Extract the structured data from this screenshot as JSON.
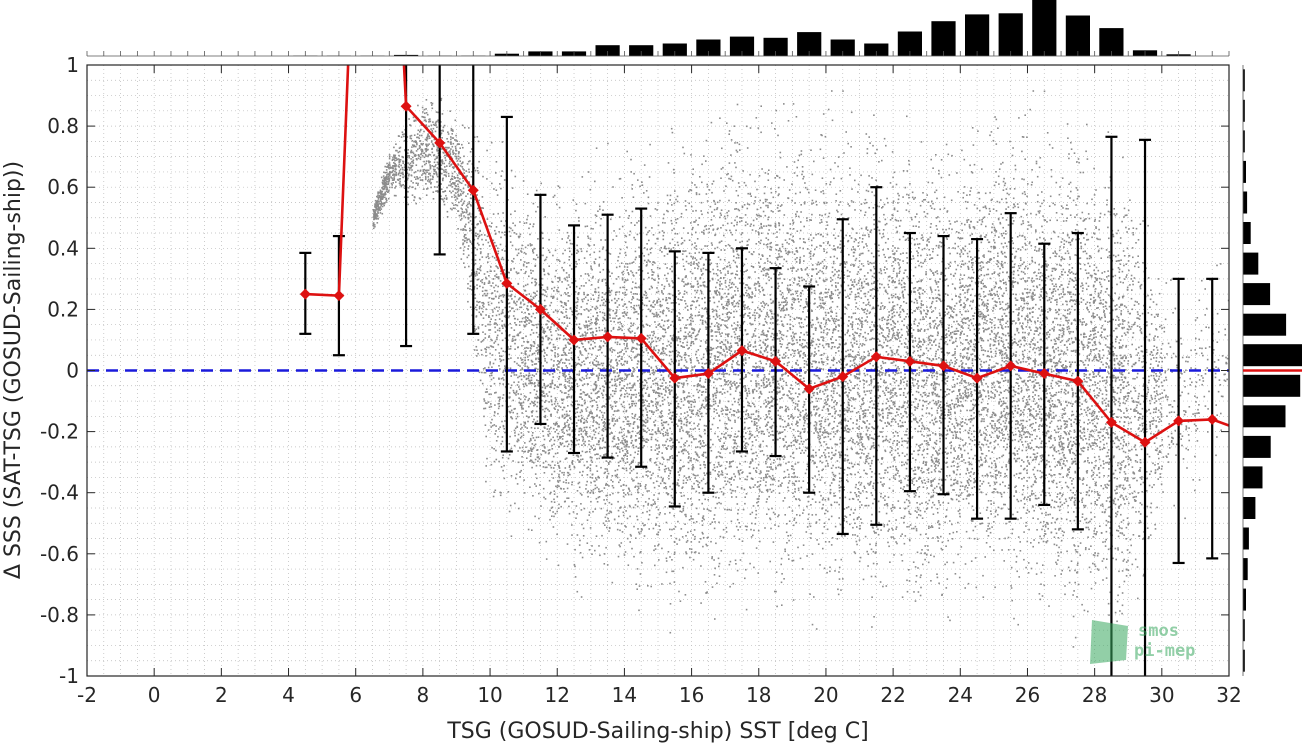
{
  "chart_data": {
    "type": "scatter",
    "xlabel": "TSG (GOSUD-Sailing-ship) SST [deg C]",
    "ylabel": "Δ SSS (SAT-TSG (GOSUD-Sailing-ship))",
    "xlim": [
      -2,
      32
    ],
    "ylim": [
      -1,
      1
    ],
    "xticks": [
      -2,
      0,
      2,
      4,
      6,
      8,
      10,
      12,
      14,
      16,
      18,
      20,
      22,
      24,
      26,
      28,
      30,
      32
    ],
    "yticks": [
      -1,
      -0.8,
      -0.6,
      -0.4,
      -0.2,
      0,
      0.2,
      0.4,
      0.6,
      0.8,
      1
    ],
    "grid": true,
    "zero_line": {
      "y": 0,
      "style": "dashed",
      "color": "#1a1adb"
    },
    "binned_mean": {
      "color": "#dd1111",
      "x": [
        4.5,
        5.5,
        7.5,
        8.5,
        9.5,
        10.5,
        11.5,
        12.5,
        13.5,
        14.5,
        15.5,
        16.5,
        17.5,
        18.5,
        19.5,
        20.5,
        21.5,
        22.5,
        23.5,
        24.5,
        25.5,
        26.5,
        27.5,
        28.5,
        29.5,
        30.5,
        31.5
      ],
      "mean": [
        0.25,
        0.245,
        0.865,
        0.745,
        0.59,
        0.285,
        0.2,
        0.1,
        0.11,
        0.105,
        -0.025,
        -0.01,
        0.065,
        0.03,
        -0.06,
        -0.02,
        0.045,
        0.03,
        0.015,
        -0.025,
        0.015,
        -0.01,
        -0.035,
        -0.17,
        -0.235,
        -0.165,
        -0.16
      ],
      "std_low": [
        0.12,
        0.05,
        0.08,
        0.38,
        0.12,
        -0.265,
        -0.175,
        -0.27,
        -0.285,
        -0.315,
        -0.445,
        -0.4,
        -0.265,
        -0.28,
        -0.4,
        -0.535,
        -0.505,
        -0.395,
        -0.405,
        -0.485,
        -0.485,
        -0.44,
        -0.52,
        -1.0,
        -1.0,
        -0.63,
        -0.615
      ],
      "std_high": [
        0.385,
        0.44,
        1.0,
        1.0,
        1.0,
        0.83,
        0.575,
        0.475,
        0.51,
        0.53,
        0.39,
        0.385,
        0.4,
        0.335,
        0.275,
        0.495,
        0.6,
        0.45,
        0.44,
        0.43,
        0.515,
        0.415,
        0.45,
        0.765,
        0.755,
        0.3,
        0.3
      ],
      "offscale_x": [
        6.5
      ],
      "exit_slope_last": -0.2
    },
    "sst_histogram": {
      "bin_centers": [
        4.5,
        5.5,
        6.5,
        7.5,
        8.5,
        9.5,
        10.5,
        11.5,
        12.5,
        13.5,
        14.5,
        15.5,
        16.5,
        17.5,
        18.5,
        19.5,
        20.5,
        21.5,
        22.5,
        23.5,
        24.5,
        25.5,
        26.5,
        27.5,
        28.5,
        29.5,
        30.5,
        31.5
      ],
      "relative_counts": [
        0.005,
        0.005,
        0.005,
        0.02,
        0.005,
        0.005,
        0.04,
        0.08,
        0.08,
        0.19,
        0.19,
        0.22,
        0.29,
        0.34,
        0.32,
        0.42,
        0.29,
        0.22,
        0.43,
        0.61,
        0.73,
        0.75,
        1.0,
        0.71,
        0.49,
        0.1,
        0.03,
        0.0
      ]
    },
    "dsss_histogram": {
      "bin_width": 0.1,
      "bin_centers": [
        -0.95,
        -0.85,
        -0.75,
        -0.65,
        -0.55,
        -0.45,
        -0.35,
        -0.25,
        -0.15,
        -0.05,
        0.05,
        0.15,
        0.25,
        0.35,
        0.45,
        0.55,
        0.65,
        0.75,
        0.85,
        0.95
      ],
      "relative_counts": [
        0.03,
        0.03,
        0.05,
        0.08,
        0.1,
        0.21,
        0.33,
        0.47,
        0.72,
        0.97,
        1.0,
        0.73,
        0.46,
        0.26,
        0.13,
        0.07,
        0.05,
        0.03,
        0.03,
        0.03
      ],
      "median_marker": {
        "y": 0,
        "color": "#dd1111"
      }
    },
    "scatter_density": {
      "color": "#8c8c8c",
      "columns": [
        {
          "x": 6.5,
          "low": 0.45,
          "high": 0.55,
          "weight": 0.3
        },
        {
          "x": 7.0,
          "low": 0.55,
          "high": 0.75,
          "weight": 0.3
        },
        {
          "x": 8.0,
          "low": 0.5,
          "high": 0.95,
          "weight": 0.4
        },
        {
          "x": 9.0,
          "low": 0.4,
          "high": 0.9,
          "weight": 0.45
        },
        {
          "x": 10.0,
          "low": -0.6,
          "high": 0.9,
          "weight": 0.5
        },
        {
          "x": 11.0,
          "low": -0.65,
          "high": 0.75,
          "weight": 0.7
        },
        {
          "x": 12.0,
          "low": -0.75,
          "high": 0.7,
          "weight": 0.8
        },
        {
          "x": 13.0,
          "low": -0.8,
          "high": 0.75,
          "weight": 0.85
        },
        {
          "x": 14.0,
          "low": -0.85,
          "high": 0.8,
          "weight": 0.9
        },
        {
          "x": 15.0,
          "low": -0.9,
          "high": 0.85,
          "weight": 0.9
        },
        {
          "x": 16.0,
          "low": -0.95,
          "high": 0.95,
          "weight": 0.9
        },
        {
          "x": 17.0,
          "low": -0.9,
          "high": 1.0,
          "weight": 0.9
        },
        {
          "x": 18.0,
          "low": -0.9,
          "high": 1.0,
          "weight": 0.9
        },
        {
          "x": 19.0,
          "low": -0.9,
          "high": 1.0,
          "weight": 0.9
        },
        {
          "x": 20.0,
          "low": -0.9,
          "high": 0.95,
          "weight": 0.9
        },
        {
          "x": 21.0,
          "low": -0.9,
          "high": 0.95,
          "weight": 0.9
        },
        {
          "x": 22.0,
          "low": -0.9,
          "high": 0.95,
          "weight": 0.9
        },
        {
          "x": 23.0,
          "low": -0.95,
          "high": 0.9,
          "weight": 0.9
        },
        {
          "x": 24.0,
          "low": -0.9,
          "high": 0.9,
          "weight": 0.95
        },
        {
          "x": 25.0,
          "low": -0.85,
          "high": 0.95,
          "weight": 0.95
        },
        {
          "x": 26.0,
          "low": -0.9,
          "high": 0.95,
          "weight": 1.0
        },
        {
          "x": 27.0,
          "low": -0.95,
          "high": 0.95,
          "weight": 1.0
        },
        {
          "x": 28.0,
          "low": -1.0,
          "high": 0.9,
          "weight": 0.95
        },
        {
          "x": 29.0,
          "low": -1.0,
          "high": 0.85,
          "weight": 0.8
        },
        {
          "x": 30.0,
          "low": -0.6,
          "high": 0.4,
          "weight": 0.2
        },
        {
          "x": 31.0,
          "low": -0.5,
          "high": 0.4,
          "weight": 0.1
        },
        {
          "x": 32.0,
          "low": -0.3,
          "high": 0.45,
          "weight": 0.1
        }
      ]
    },
    "watermark": {
      "line1": "smos",
      "line2": "pi-mep"
    }
  }
}
